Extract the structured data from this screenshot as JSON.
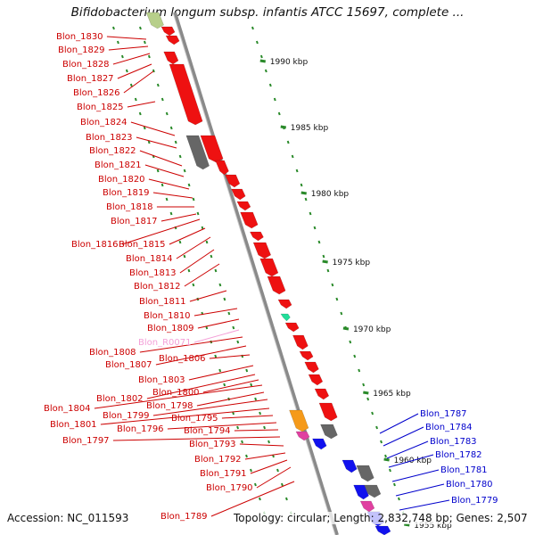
{
  "title": "Bifidobacterium longum subsp. infantis ATCC 15697, complete ...",
  "accession": "Accession: NC_011593",
  "summary": "Topology: circular; Length: 2,832,748 bp; Genes: 2,507",
  "colors": {
    "forward_gene": "#ee1111",
    "reverse_gene": "#1111ee",
    "pseudo_gene": "#666666",
    "rna_gene": "#f4a0d8",
    "tick": "#2a8a2a",
    "backbone": "#8a8a8a",
    "left_label": "#cc0000",
    "right_label": "#0000cc",
    "rna_label": "#f4a0d8"
  },
  "kbp_ticks": [
    "1990 kbp",
    "1985 kbp",
    "1980 kbp",
    "1975 kbp",
    "1970 kbp",
    "1965 kbp",
    "1960 kbp",
    "1955 kbp"
  ],
  "left_labels": [
    "Blon_1830",
    "Blon_1829",
    "Blon_1828",
    "Blon_1827",
    "Blon_1826",
    "Blon_1825",
    "Blon_1824",
    "Blon_1823",
    "Blon_1822",
    "Blon_1821",
    "Blon_1820",
    "Blon_1819",
    "Blon_1818",
    "Blon_1817",
    "Blon_1816",
    "Blon_1815",
    "Blon_1814",
    "Blon_1813",
    "Blon_1812",
    "Blon_1811",
    "Blon_1810",
    "Blon_1809",
    "Blon_R0071",
    "Blon_1808",
    "Blon_1807",
    "Blon_1806",
    "Blon_1803",
    "Blon_1802",
    "Blon_1800",
    "Blon_1804",
    "Blon_1798",
    "Blon_1799",
    "Blon_1801",
    "Blon_1795",
    "Blon_1796",
    "Blon_1794",
    "Blon_1797",
    "Blon_1793",
    "Blon_1792",
    "Blon_1791",
    "Blon_1790",
    "Blon_1789"
  ],
  "right_labels": [
    "Blon_1787",
    "Blon_1784",
    "Blon_1783",
    "Blon_1782",
    "Blon_1781",
    "Blon_1780",
    "Blon_1779"
  ]
}
